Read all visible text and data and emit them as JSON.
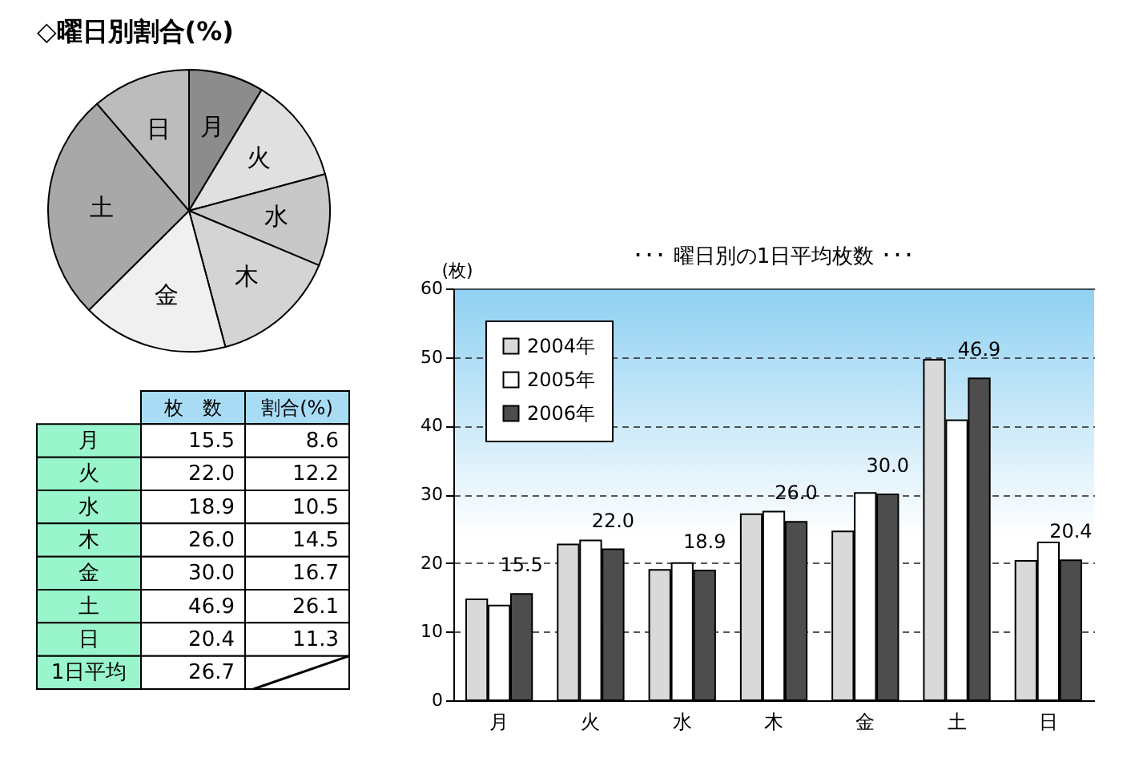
{
  "chart_data": [
    {
      "type": "pie",
      "title": "◇曜日別割合(%)",
      "categories": [
        "月",
        "火",
        "水",
        "木",
        "金",
        "土",
        "日"
      ],
      "values": [
        8.6,
        12.2,
        10.5,
        14.5,
        16.7,
        26.1,
        11.3
      ],
      "colors": [
        "#8c8c8c",
        "#e0e0e0",
        "#c8c8c8",
        "#d4d4d4",
        "#f0f0f0",
        "#a8a8a8",
        "#bcbcbc"
      ]
    },
    {
      "type": "other",
      "categories": [
        "月",
        "火",
        "水",
        "木",
        "金",
        "土",
        "日",
        "1日平均"
      ],
      "series": [
        {
          "name": "枚　数",
          "values": [
            15.5,
            22.0,
            18.9,
            26.0,
            30.0,
            46.9,
            20.4,
            26.7
          ],
          "value_labels": [
            "15.5",
            "22.0",
            "18.9",
            "26.0",
            "30.0",
            "46.9",
            "20.4",
            "26.7"
          ]
        },
        {
          "name": "割合(%)",
          "values": [
            8.6,
            12.2,
            10.5,
            14.5,
            16.7,
            26.1,
            11.3,
            null
          ],
          "value_labels": [
            "8.6",
            "12.2",
            "10.5",
            "14.5",
            "16.7",
            "26.1",
            "11.3",
            null
          ]
        }
      ]
    },
    {
      "type": "bar",
      "title": "･･･ 曜日別の1日平均枚数 ･･･",
      "ylabel": "(枚)",
      "categories": [
        "月",
        "火",
        "水",
        "木",
        "金",
        "土",
        "日"
      ],
      "series": [
        {
          "name": "2004年",
          "color": "#d9d9d9",
          "values": [
            14.7,
            22.7,
            19.0,
            27.1,
            24.6,
            49.6,
            20.3
          ]
        },
        {
          "name": "2005年",
          "color": "#ffffff",
          "values": [
            13.8,
            23.3,
            20.0,
            27.5,
            30.2,
            40.8,
            23.0
          ]
        },
        {
          "name": "2006年",
          "color": "#4d4d4d",
          "values": [
            15.5,
            22.0,
            18.9,
            26.0,
            30.0,
            46.9,
            20.4
          ],
          "value_labels": [
            "15.5",
            "22.0",
            "18.9",
            "26.0",
            "30.0",
            "46.9",
            "20.4"
          ]
        }
      ],
      "ylim": [
        0,
        60
      ],
      "yticks": [
        0,
        10,
        20,
        30,
        40,
        50,
        60
      ],
      "grid": "y",
      "legend": "top left"
    }
  ]
}
